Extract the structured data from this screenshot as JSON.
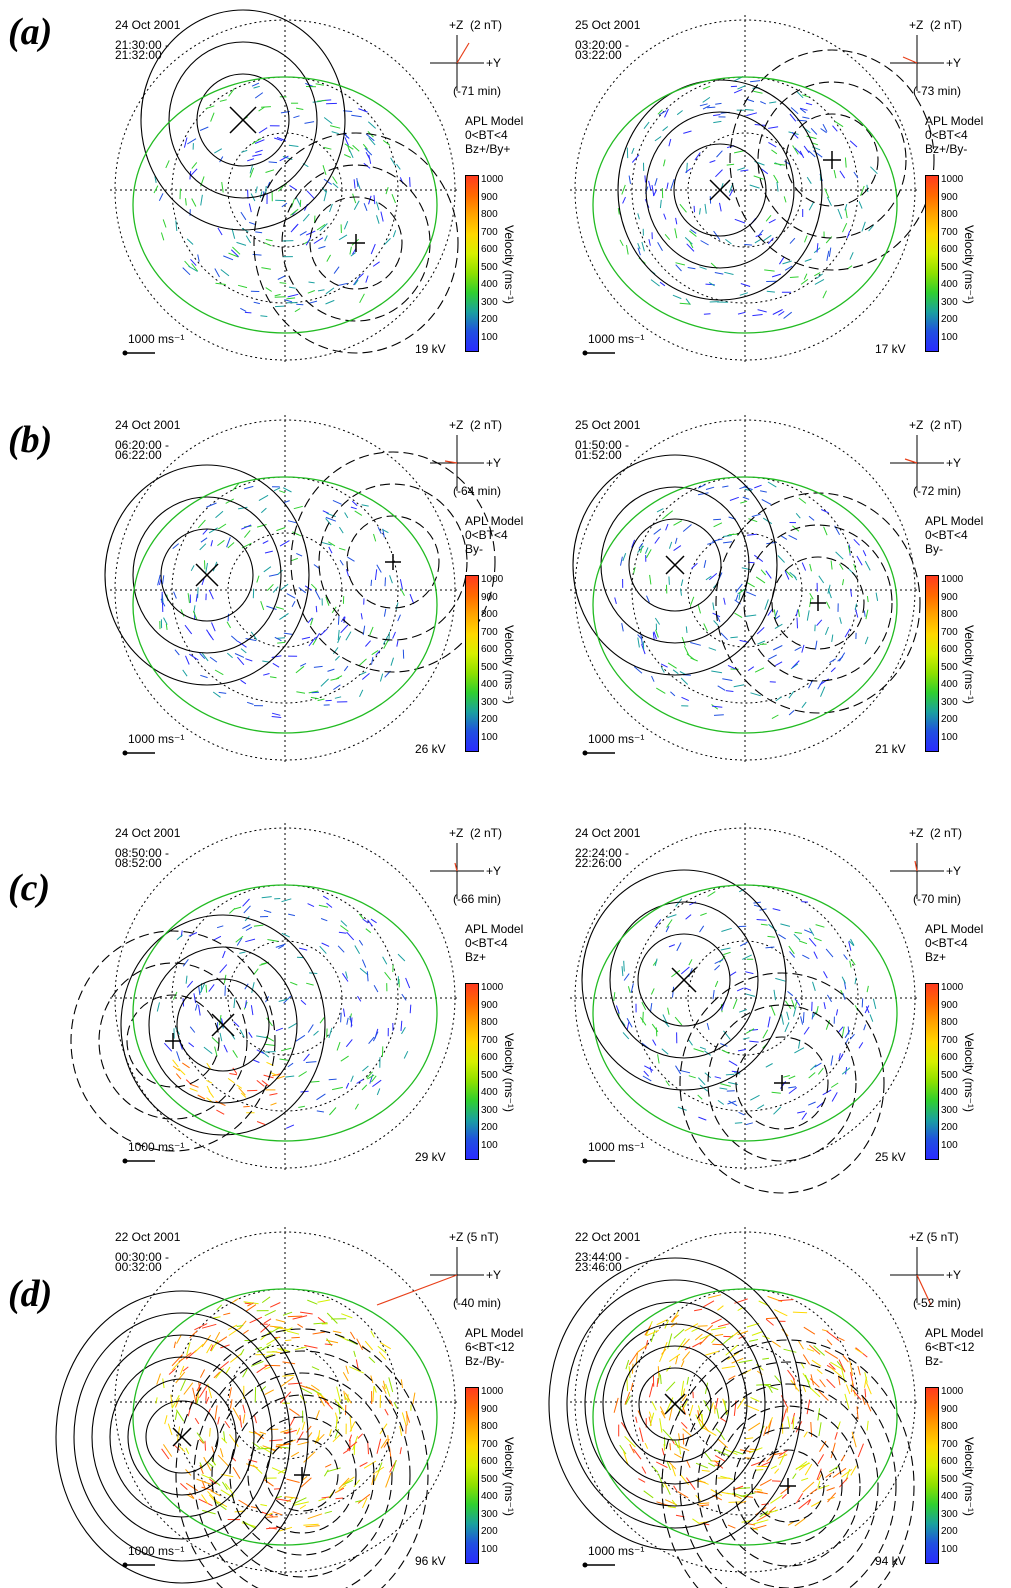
{
  "row_labels": [
    "(a)",
    "(b)",
    "(c)",
    "(d)"
  ],
  "colorbar": {
    "ticks": [
      "1000",
      "900",
      "800",
      "700",
      "600",
      "500",
      "400",
      "300",
      "200",
      "100"
    ],
    "colors": [
      "#ff3b1f",
      "#ff6a00",
      "#ffa500",
      "#ffd800",
      "#d6f000",
      "#8ee000",
      "#2fcf2f",
      "#1aa0a0",
      "#2050e0",
      "#2a2aff"
    ],
    "label": "Velocity (ms⁻¹)"
  },
  "velocity_scale": "1000 ms⁻¹",
  "imf_axis": {
    "y": "+Y"
  },
  "colors": {
    "boundary": "#22bb22",
    "imf_vector": "#e8401a",
    "contour": "#000000"
  },
  "panels": [
    {
      "date": "24 Oct 2001",
      "time_start": "21:30:00 -",
      "time_end": "21:32:00",
      "imf_scale": "+Z  (2 nT)",
      "delay": "(-71 min)",
      "model": "APL Model",
      "bt": "0<BT<4",
      "sector": "Bz+/By+",
      "potential": "19 kV"
    },
    {
      "date": "25 Oct 2001",
      "time_start": "03:20:00 -",
      "time_end": "03:22:00",
      "imf_scale": "+Z  (2 nT)",
      "delay": "(-73 min)",
      "model": "APL Model",
      "bt": "0<BT<4",
      "sector": "Bz+/By-",
      "potential": "17 kV"
    },
    {
      "date": "24 Oct 2001",
      "time_start": "06:20:00 -",
      "time_end": "06:22:00",
      "imf_scale": "+Z  (2 nT)",
      "delay": "(-64 min)",
      "model": "APL Model",
      "bt": "0<BT<4",
      "sector": "By-",
      "potential": "26 kV"
    },
    {
      "date": "25 Oct 2001",
      "time_start": "01:50:00 -",
      "time_end": "01:52:00",
      "imf_scale": "+Z  (2 nT)",
      "delay": "(-72 min)",
      "model": "APL Model",
      "bt": "0<BT<4",
      "sector": "By-",
      "potential": "21 kV"
    },
    {
      "date": "24 Oct 2001",
      "time_start": "08:50:00 -",
      "time_end": "08:52:00",
      "imf_scale": "+Z  (2 nT)",
      "delay": "(-66 min)",
      "model": "APL Model",
      "bt": "0<BT<4",
      "sector": "Bz+",
      "potential": "29 kV"
    },
    {
      "date": "24 Oct 2001",
      "time_start": "22:24:00 -",
      "time_end": "22:26:00",
      "imf_scale": "+Z  (2 nT)",
      "delay": "(-70 min)",
      "model": "APL Model",
      "bt": "0<BT<4",
      "sector": "Bz+",
      "potential": "25 kV"
    },
    {
      "date": "22 Oct 2001",
      "time_start": "00:30:00 -",
      "time_end": "00:32:00",
      "imf_scale": "+Z (5 nT)",
      "delay": "(-40 min)",
      "model": "APL Model",
      "bt": "6<BT<12",
      "sector": "Bz-/By-",
      "potential": "96 kV"
    },
    {
      "date": "22 Oct 2001",
      "time_start": "23:44:00 -",
      "time_end": "23:46:00",
      "imf_scale": "+Z (5 nT)",
      "delay": "(-52 min)",
      "model": "APL Model",
      "bt": "6<BT<12",
      "sector": "Bz-",
      "potential": "94 kV"
    }
  ]
}
